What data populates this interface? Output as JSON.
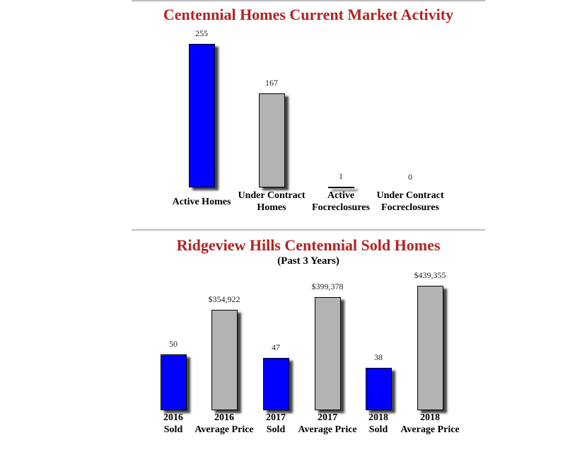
{
  "chart_data": [
    {
      "type": "bar",
      "title": "Centennial Homes Current Market Activity",
      "categories": [
        "Active Homes",
        "Under Contract\nHomes",
        "Active\nFocreclosures",
        "Under Contract\nFocreclosures"
      ],
      "values": [
        255,
        167,
        1,
        0
      ],
      "colors": [
        "#0000ff",
        "#b3b3b3",
        "#b3b3b3",
        "#b3b3b3"
      ]
    },
    {
      "type": "bar",
      "title": "Ridgeview Hills Centennial Sold Homes",
      "subtitle": "(Past 3 Years)",
      "categories": [
        "2016\nSold",
        "2016\nAverage Price",
        "2017\nSold",
        "2017\nAverage Price",
        "2018\nSold",
        "2018\nAverage Price"
      ],
      "values": [
        50,
        354922,
        47,
        399378,
        38,
        439355
      ],
      "value_labels": [
        "50",
        "$354,922",
        "47",
        "$399,378",
        "38",
        "$439,355"
      ],
      "colors": [
        "#0000ff",
        "#b3b3b3",
        "#0000ff",
        "#b3b3b3",
        "#0000ff",
        "#b3b3b3"
      ]
    }
  ]
}
